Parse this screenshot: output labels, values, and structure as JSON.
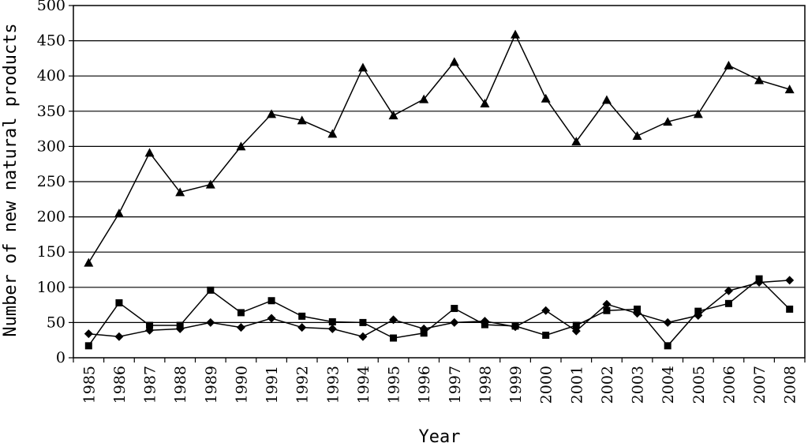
{
  "chart_data": {
    "type": "line",
    "title": "",
    "xlabel": "Year",
    "ylabel": "Number of new natural products",
    "ylim": [
      0,
      500
    ],
    "yticks": [
      0,
      50,
      100,
      150,
      200,
      250,
      300,
      350,
      400,
      450,
      500
    ],
    "grid": true,
    "categories": [
      "1985",
      "1986",
      "1987",
      "1988",
      "1989",
      "1990",
      "1991",
      "1992",
      "1993",
      "1994",
      "1995",
      "1996",
      "1997",
      "1998",
      "1999",
      "2000",
      "2001",
      "2002",
      "2003",
      "2004",
      "2005",
      "2006",
      "2007",
      "2008"
    ],
    "series": [
      {
        "marker": "triangle",
        "values": [
          135,
          205,
          291,
          235,
          246,
          300,
          346,
          337,
          318,
          412,
          344,
          367,
          420,
          361,
          459,
          368,
          307,
          366,
          315,
          335,
          346,
          415,
          394,
          381
        ]
      },
      {
        "marker": "square",
        "values": [
          17,
          78,
          46,
          46,
          96,
          64,
          81,
          59,
          51,
          50,
          28,
          35,
          70,
          47,
          45,
          32,
          46,
          67,
          69,
          17,
          66,
          77,
          112,
          69
        ]
      },
      {
        "marker": "diamond",
        "values": [
          34,
          30,
          39,
          41,
          50,
          43,
          56,
          43,
          41,
          30,
          54,
          41,
          50,
          52,
          44,
          67,
          38,
          76,
          63,
          50,
          60,
          95,
          107,
          110
        ]
      }
    ]
  }
}
